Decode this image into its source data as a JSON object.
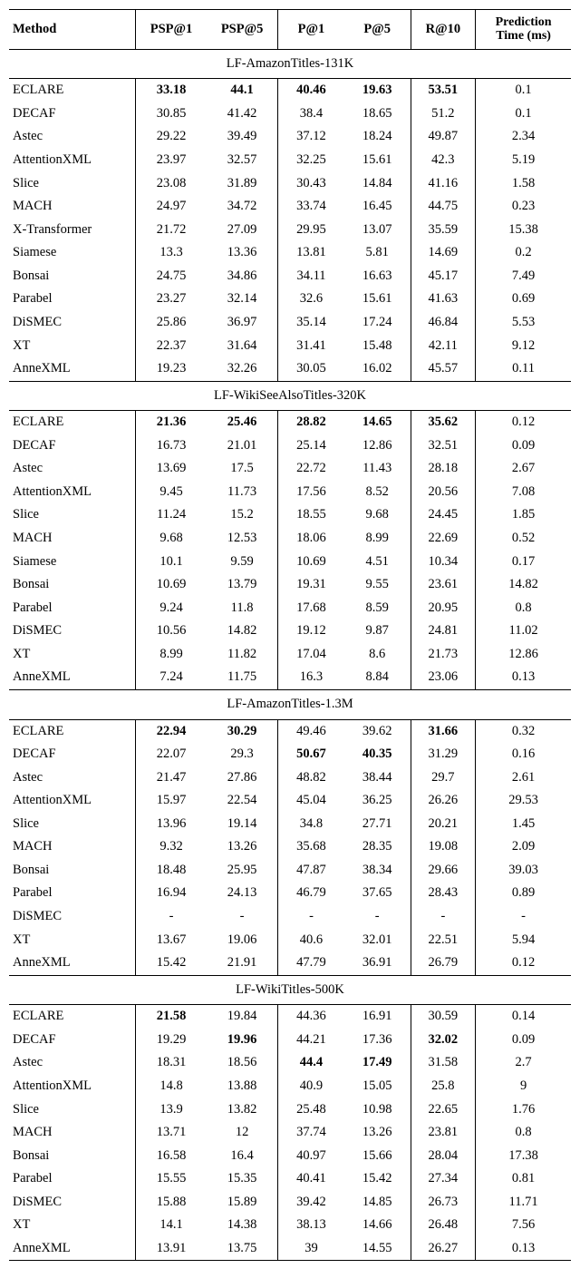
{
  "header": {
    "method": "Method",
    "psp1": "PSP@1",
    "psp5": "PSP@5",
    "p1": "P@1",
    "p5": "P@5",
    "r10": "R@10",
    "pred1": "Prediction",
    "pred2": "Time (ms)"
  },
  "sections": [
    {
      "title": "LF-AmazonTitles-131K",
      "rows": [
        {
          "m": "ECLARE",
          "v": [
            "33.18",
            "44.1",
            "40.46",
            "19.63",
            "53.51",
            "0.1"
          ],
          "b": [
            1,
            1,
            1,
            1,
            1,
            0
          ]
        },
        {
          "m": "DECAF",
          "v": [
            "30.85",
            "41.42",
            "38.4",
            "18.65",
            "51.2",
            "0.1"
          ],
          "b": [
            0,
            0,
            0,
            0,
            0,
            0
          ]
        },
        {
          "m": "Astec",
          "v": [
            "29.22",
            "39.49",
            "37.12",
            "18.24",
            "49.87",
            "2.34"
          ],
          "b": [
            0,
            0,
            0,
            0,
            0,
            0
          ]
        },
        {
          "m": "AttentionXML",
          "v": [
            "23.97",
            "32.57",
            "32.25",
            "15.61",
            "42.3",
            "5.19"
          ],
          "b": [
            0,
            0,
            0,
            0,
            0,
            0
          ]
        },
        {
          "m": "Slice",
          "v": [
            "23.08",
            "31.89",
            "30.43",
            "14.84",
            "41.16",
            "1.58"
          ],
          "b": [
            0,
            0,
            0,
            0,
            0,
            0
          ]
        },
        {
          "m": "MACH",
          "v": [
            "24.97",
            "34.72",
            "33.74",
            "16.45",
            "44.75",
            "0.23"
          ],
          "b": [
            0,
            0,
            0,
            0,
            0,
            0
          ]
        },
        {
          "m": "X-Transformer",
          "v": [
            "21.72",
            "27.09",
            "29.95",
            "13.07",
            "35.59",
            "15.38"
          ],
          "b": [
            0,
            0,
            0,
            0,
            0,
            0
          ]
        },
        {
          "m": "Siamese",
          "v": [
            "13.3",
            "13.36",
            "13.81",
            "5.81",
            "14.69",
            "0.2"
          ],
          "b": [
            0,
            0,
            0,
            0,
            0,
            0
          ]
        },
        {
          "m": "Bonsai",
          "v": [
            "24.75",
            "34.86",
            "34.11",
            "16.63",
            "45.17",
            "7.49"
          ],
          "b": [
            0,
            0,
            0,
            0,
            0,
            0
          ]
        },
        {
          "m": "Parabel",
          "v": [
            "23.27",
            "32.14",
            "32.6",
            "15.61",
            "41.63",
            "0.69"
          ],
          "b": [
            0,
            0,
            0,
            0,
            0,
            0
          ]
        },
        {
          "m": "DiSMEC",
          "v": [
            "25.86",
            "36.97",
            "35.14",
            "17.24",
            "46.84",
            "5.53"
          ],
          "b": [
            0,
            0,
            0,
            0,
            0,
            0
          ]
        },
        {
          "m": "XT",
          "v": [
            "22.37",
            "31.64",
            "31.41",
            "15.48",
            "42.11",
            "9.12"
          ],
          "b": [
            0,
            0,
            0,
            0,
            0,
            0
          ]
        },
        {
          "m": "AnneXML",
          "v": [
            "19.23",
            "32.26",
            "30.05",
            "16.02",
            "45.57",
            "0.11"
          ],
          "b": [
            0,
            0,
            0,
            0,
            0,
            0
          ]
        }
      ]
    },
    {
      "title": "LF-WikiSeeAlsoTitles-320K",
      "rows": [
        {
          "m": "ECLARE",
          "v": [
            "21.36",
            "25.46",
            "28.82",
            "14.65",
            "35.62",
            "0.12"
          ],
          "b": [
            1,
            1,
            1,
            1,
            1,
            0
          ]
        },
        {
          "m": "DECAF",
          "v": [
            "16.73",
            "21.01",
            "25.14",
            "12.86",
            "32.51",
            "0.09"
          ],
          "b": [
            0,
            0,
            0,
            0,
            0,
            0
          ]
        },
        {
          "m": "Astec",
          "v": [
            "13.69",
            "17.5",
            "22.72",
            "11.43",
            "28.18",
            "2.67"
          ],
          "b": [
            0,
            0,
            0,
            0,
            0,
            0
          ]
        },
        {
          "m": "AttentionXML",
          "v": [
            "9.45",
            "11.73",
            "17.56",
            "8.52",
            "20.56",
            "7.08"
          ],
          "b": [
            0,
            0,
            0,
            0,
            0,
            0
          ]
        },
        {
          "m": "Slice",
          "v": [
            "11.24",
            "15.2",
            "18.55",
            "9.68",
            "24.45",
            "1.85"
          ],
          "b": [
            0,
            0,
            0,
            0,
            0,
            0
          ]
        },
        {
          "m": "MACH",
          "v": [
            "9.68",
            "12.53",
            "18.06",
            "8.99",
            "22.69",
            "0.52"
          ],
          "b": [
            0,
            0,
            0,
            0,
            0,
            0
          ]
        },
        {
          "m": "Siamese",
          "v": [
            "10.1",
            "9.59",
            "10.69",
            "4.51",
            "10.34",
            "0.17"
          ],
          "b": [
            0,
            0,
            0,
            0,
            0,
            0
          ]
        },
        {
          "m": "Bonsai",
          "v": [
            "10.69",
            "13.79",
            "19.31",
            "9.55",
            "23.61",
            "14.82"
          ],
          "b": [
            0,
            0,
            0,
            0,
            0,
            0
          ]
        },
        {
          "m": "Parabel",
          "v": [
            "9.24",
            "11.8",
            "17.68",
            "8.59",
            "20.95",
            "0.8"
          ],
          "b": [
            0,
            0,
            0,
            0,
            0,
            0
          ]
        },
        {
          "m": "DiSMEC",
          "v": [
            "10.56",
            "14.82",
            "19.12",
            "9.87",
            "24.81",
            "11.02"
          ],
          "b": [
            0,
            0,
            0,
            0,
            0,
            0
          ]
        },
        {
          "m": "XT",
          "v": [
            "8.99",
            "11.82",
            "17.04",
            "8.6",
            "21.73",
            "12.86"
          ],
          "b": [
            0,
            0,
            0,
            0,
            0,
            0
          ]
        },
        {
          "m": "AnneXML",
          "v": [
            "7.24",
            "11.75",
            "16.3",
            "8.84",
            "23.06",
            "0.13"
          ],
          "b": [
            0,
            0,
            0,
            0,
            0,
            0
          ]
        }
      ]
    },
    {
      "title": "LF-AmazonTitles-1.3M",
      "rows": [
        {
          "m": "ECLARE",
          "v": [
            "22.94",
            "30.29",
            "49.46",
            "39.62",
            "31.66",
            "0.32"
          ],
          "b": [
            1,
            1,
            0,
            0,
            1,
            0
          ]
        },
        {
          "m": "DECAF",
          "v": [
            "22.07",
            "29.3",
            "50.67",
            "40.35",
            "31.29",
            "0.16"
          ],
          "b": [
            0,
            0,
            1,
            1,
            0,
            0
          ]
        },
        {
          "m": "Astec",
          "v": [
            "21.47",
            "27.86",
            "48.82",
            "38.44",
            "29.7",
            "2.61"
          ],
          "b": [
            0,
            0,
            0,
            0,
            0,
            0
          ]
        },
        {
          "m": "AttentionXML",
          "v": [
            "15.97",
            "22.54",
            "45.04",
            "36.25",
            "26.26",
            "29.53"
          ],
          "b": [
            0,
            0,
            0,
            0,
            0,
            0
          ]
        },
        {
          "m": "Slice",
          "v": [
            "13.96",
            "19.14",
            "34.8",
            "27.71",
            "20.21",
            "1.45"
          ],
          "b": [
            0,
            0,
            0,
            0,
            0,
            0
          ]
        },
        {
          "m": "MACH",
          "v": [
            "9.32",
            "13.26",
            "35.68",
            "28.35",
            "19.08",
            "2.09"
          ],
          "b": [
            0,
            0,
            0,
            0,
            0,
            0
          ]
        },
        {
          "m": "Bonsai",
          "v": [
            "18.48",
            "25.95",
            "47.87",
            "38.34",
            "29.66",
            "39.03"
          ],
          "b": [
            0,
            0,
            0,
            0,
            0,
            0
          ]
        },
        {
          "m": "Parabel",
          "v": [
            "16.94",
            "24.13",
            "46.79",
            "37.65",
            "28.43",
            "0.89"
          ],
          "b": [
            0,
            0,
            0,
            0,
            0,
            0
          ]
        },
        {
          "m": "DiSMEC",
          "v": [
            "-",
            "-",
            "-",
            "-",
            "-",
            "-"
          ],
          "b": [
            0,
            0,
            0,
            0,
            0,
            0
          ]
        },
        {
          "m": "XT",
          "v": [
            "13.67",
            "19.06",
            "40.6",
            "32.01",
            "22.51",
            "5.94"
          ],
          "b": [
            0,
            0,
            0,
            0,
            0,
            0
          ]
        },
        {
          "m": "AnneXML",
          "v": [
            "15.42",
            "21.91",
            "47.79",
            "36.91",
            "26.79",
            "0.12"
          ],
          "b": [
            0,
            0,
            0,
            0,
            0,
            0
          ]
        }
      ]
    },
    {
      "title": "LF-WikiTitles-500K",
      "rows": [
        {
          "m": "ECLARE",
          "v": [
            "21.58",
            "19.84",
            "44.36",
            "16.91",
            "30.59",
            "0.14"
          ],
          "b": [
            1,
            0,
            0,
            0,
            0,
            0
          ]
        },
        {
          "m": "DECAF",
          "v": [
            "19.29",
            "19.96",
            "44.21",
            "17.36",
            "32.02",
            "0.09"
          ],
          "b": [
            0,
            1,
            0,
            0,
            1,
            0
          ]
        },
        {
          "m": "Astec",
          "v": [
            "18.31",
            "18.56",
            "44.4",
            "17.49",
            "31.58",
            "2.7"
          ],
          "b": [
            0,
            0,
            1,
            1,
            0,
            0
          ]
        },
        {
          "m": "AttentionXML",
          "v": [
            "14.8",
            "13.88",
            "40.9",
            "15.05",
            "25.8",
            "9"
          ],
          "b": [
            0,
            0,
            0,
            0,
            0,
            0
          ]
        },
        {
          "m": "Slice",
          "v": [
            "13.9",
            "13.82",
            "25.48",
            "10.98",
            "22.65",
            "1.76"
          ],
          "b": [
            0,
            0,
            0,
            0,
            0,
            0
          ]
        },
        {
          "m": "MACH",
          "v": [
            "13.71",
            "12",
            "37.74",
            "13.26",
            "23.81",
            "0.8"
          ],
          "b": [
            0,
            0,
            0,
            0,
            0,
            0
          ]
        },
        {
          "m": "Bonsai",
          "v": [
            "16.58",
            "16.4",
            "40.97",
            "15.66",
            "28.04",
            "17.38"
          ],
          "b": [
            0,
            0,
            0,
            0,
            0,
            0
          ]
        },
        {
          "m": "Parabel",
          "v": [
            "15.55",
            "15.35",
            "40.41",
            "15.42",
            "27.34",
            "0.81"
          ],
          "b": [
            0,
            0,
            0,
            0,
            0,
            0
          ]
        },
        {
          "m": "DiSMEC",
          "v": [
            "15.88",
            "15.89",
            "39.42",
            "14.85",
            "26.73",
            "11.71"
          ],
          "b": [
            0,
            0,
            0,
            0,
            0,
            0
          ]
        },
        {
          "m": "XT",
          "v": [
            "14.1",
            "14.38",
            "38.13",
            "14.66",
            "26.48",
            "7.56"
          ],
          "b": [
            0,
            0,
            0,
            0,
            0,
            0
          ]
        },
        {
          "m": "AnneXML",
          "v": [
            "13.91",
            "13.75",
            "39",
            "14.55",
            "26.27",
            "0.13"
          ],
          "b": [
            0,
            0,
            0,
            0,
            0,
            0
          ]
        }
      ]
    }
  ]
}
